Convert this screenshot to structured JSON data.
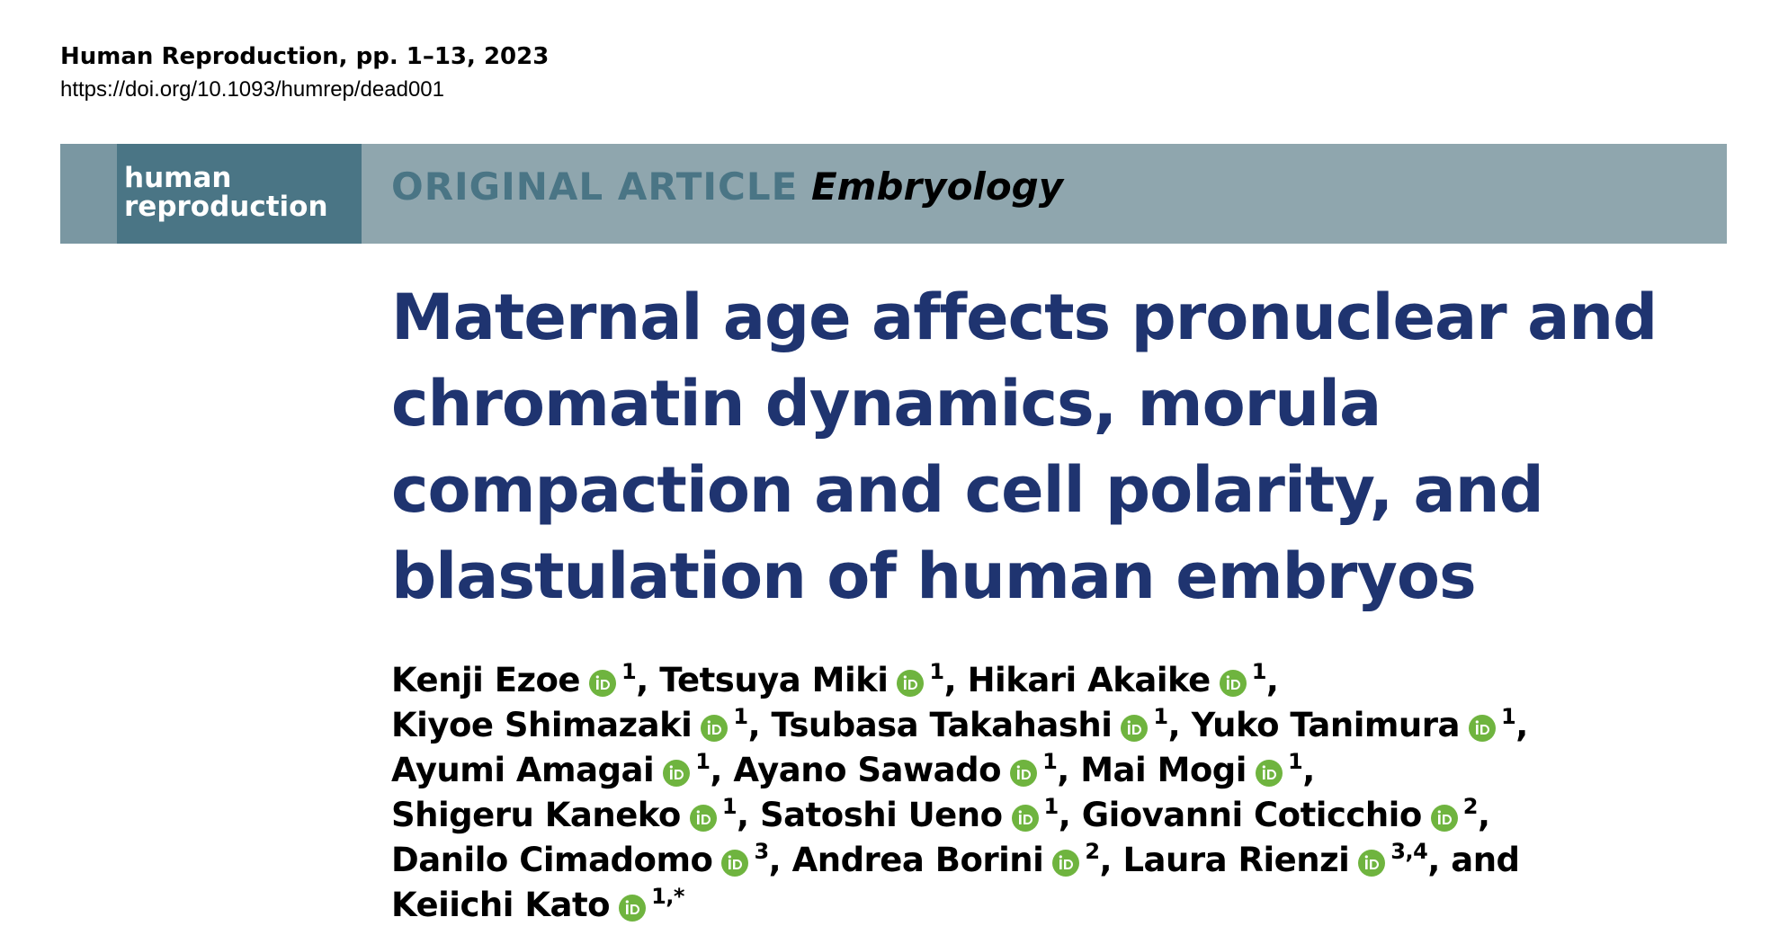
{
  "header": {
    "journal": "Human Reproduction, pp. 1–13, 2023",
    "doi": "https://doi.org/10.1093/humrep/dead001"
  },
  "banner": {
    "logo": [
      "human",
      "reproduction"
    ],
    "section": "ORIGINAL ARTICLE",
    "subject": "Embryology"
  },
  "title": [
    "Maternal age affects pronuclear and",
    "chromatin dynamics, morula",
    "compaction and cell polarity, and",
    "blastulation of human embryos"
  ],
  "author_lines": [
    [
      {
        "name": "Kenji Ezoe",
        "affil": "1",
        "after": ","
      },
      {
        "name": "Tetsuya Miki",
        "affil": "1",
        "after": ","
      },
      {
        "name": "Hikari Akaike",
        "affil": "1",
        "after": ","
      }
    ],
    [
      {
        "name": "Kiyoe Shimazaki",
        "affil": "1",
        "after": ","
      },
      {
        "name": "Tsubasa Takahashi",
        "affil": "1",
        "after": ","
      },
      {
        "name": "Yuko Tanimura",
        "affil": "1",
        "after": ","
      }
    ],
    [
      {
        "name": "Ayumi Amagai",
        "affil": "1",
        "after": ","
      },
      {
        "name": "Ayano Sawado",
        "affil": "1",
        "after": ","
      },
      {
        "name": "Mai Mogi",
        "affil": "1",
        "after": ","
      }
    ],
    [
      {
        "name": "Shigeru Kaneko",
        "affil": "1",
        "after": ","
      },
      {
        "name": "Satoshi Ueno",
        "affil": "1",
        "after": ","
      },
      {
        "name": "Giovanni Coticchio",
        "affil": "2",
        "after": ","
      }
    ],
    [
      {
        "name": "Danilo Cimadomo",
        "affil": "3",
        "after": ","
      },
      {
        "name": "Andrea Borini",
        "affil": "2",
        "after": ","
      },
      {
        "name": "Laura Rienzi",
        "affil": "3,4",
        "after": ", and"
      }
    ],
    [
      {
        "name": "Keiichi Kato",
        "affil": "1,*",
        "after": ""
      }
    ]
  ]
}
